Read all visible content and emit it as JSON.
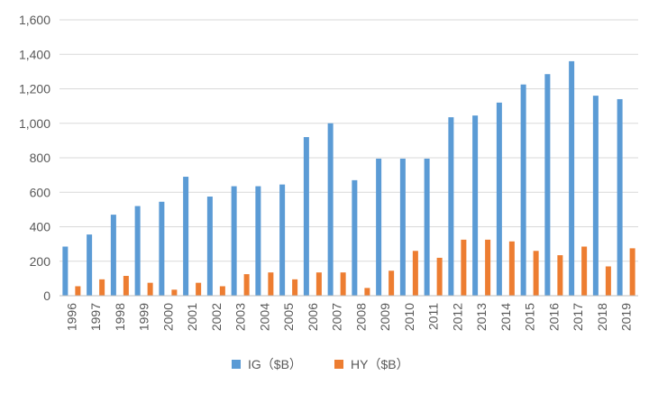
{
  "chart_data": {
    "type": "bar",
    "categories": [
      "1996",
      "1997",
      "1998",
      "1999",
      "2000",
      "2001",
      "2002",
      "2003",
      "2004",
      "2005",
      "2006",
      "2007",
      "2008",
      "2009",
      "2010",
      "2011",
      "2012",
      "2013",
      "2014",
      "2015",
      "2016",
      "2017",
      "2018",
      "2019"
    ],
    "series": [
      {
        "name": "IG（$B）",
        "color": "#5B9BD5",
        "values": [
          285,
          355,
          470,
          520,
          545,
          690,
          575,
          635,
          635,
          645,
          920,
          1000,
          670,
          795,
          795,
          795,
          1035,
          1045,
          1120,
          1225,
          1285,
          1360,
          1160,
          1140
        ]
      },
      {
        "name": "HY（$B）",
        "color": "#ED7D31",
        "values": [
          55,
          95,
          115,
          75,
          35,
          75,
          55,
          125,
          135,
          95,
          135,
          135,
          45,
          145,
          260,
          220,
          325,
          325,
          315,
          260,
          235,
          285,
          170,
          275
        ]
      }
    ],
    "yticks": [
      "0",
      "200",
      "400",
      "600",
      "800",
      "1,000",
      "1,200",
      "1,400",
      "1,600"
    ],
    "ylim": [
      0,
      1600
    ],
    "grid": true,
    "legend": "bottom"
  }
}
